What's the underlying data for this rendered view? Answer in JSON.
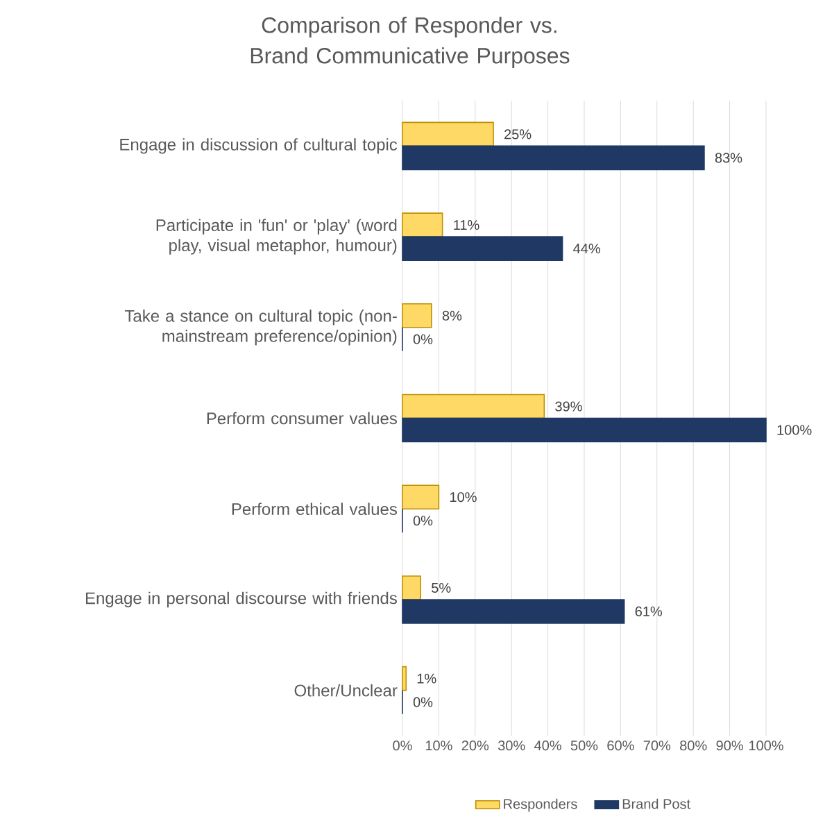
{
  "chart_data": {
    "type": "bar",
    "orientation": "horizontal",
    "title": "Comparison of Responder vs. Brand Communicative Purposes",
    "categories": [
      "Engage in discussion of cultural topic",
      "Participate in 'fun' or 'play' (word play, visual metaphor, humour)",
      "Take a stance on cultural topic (non-mainstream preference/opinion)",
      "Perform consumer values",
      "Perform ethical values",
      "Engage in personal discourse with friends",
      "Other/Unclear"
    ],
    "series": [
      {
        "name": "Responders",
        "color": "#ffd966",
        "values": [
          25,
          11,
          8,
          39,
          10,
          5,
          1
        ],
        "value_labels": [
          "25%",
          "11%",
          "8%",
          "39%",
          "10%",
          "5%",
          "1%"
        ]
      },
      {
        "name": "Brand Post",
        "color": "#1f3864",
        "values": [
          83,
          44,
          0,
          100,
          0,
          61,
          0
        ],
        "value_labels": [
          "83%",
          "44%",
          "0%",
          "100%",
          "0%",
          "61%",
          "0%"
        ]
      }
    ],
    "xlim": [
      0,
      100
    ],
    "xticks": [
      {
        "value": 0,
        "label": "0%"
      },
      {
        "value": 10,
        "label": "10%"
      },
      {
        "value": 20,
        "label": "20%"
      },
      {
        "value": 30,
        "label": "30%"
      },
      {
        "value": 40,
        "label": "40%"
      },
      {
        "value": 50,
        "label": "50%"
      },
      {
        "value": 60,
        "label": "60%"
      },
      {
        "value": 70,
        "label": "70%"
      },
      {
        "value": 80,
        "label": "80%"
      },
      {
        "value": 90,
        "label": "90%"
      },
      {
        "value": 100,
        "label": "100%"
      }
    ],
    "grid": "x",
    "legend": "bottom"
  }
}
